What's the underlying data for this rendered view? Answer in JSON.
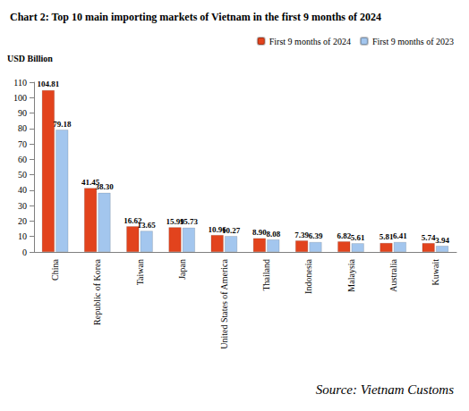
{
  "chart_data": {
    "type": "bar",
    "title": "Chart 2: Top 10 main importing markets of Vietnam in the first 9 months of 2024",
    "y_label": "USD Billion",
    "source": "Source: Vietnam Customs",
    "categories": [
      "China",
      "Republic of Korea",
      "Taiwan",
      "Japan",
      "United States of America",
      "Thailand",
      "Indonesia",
      "Malaysia",
      "Australia",
      "Kuwait"
    ],
    "series": [
      {
        "name": "First 9 months of 2024",
        "color": "#e2431d",
        "values": [
          104.81,
          41.45,
          16.62,
          15.99,
          10.96,
          8.9,
          7.39,
          6.82,
          5.81,
          5.74
        ],
        "value_labels": [
          "104.81",
          "41.45",
          "16.62",
          "15.99",
          "10.96",
          "8.90",
          "7.39",
          "6.82",
          "5.81",
          "5.74"
        ]
      },
      {
        "name": "First 9 months of 2023",
        "color": "#a3c6ee",
        "values": [
          79.18,
          38.3,
          13.65,
          15.73,
          10.27,
          8.08,
          6.39,
          5.61,
          6.41,
          3.94
        ],
        "value_labels": [
          "79.18",
          "38.30",
          "13.65",
          "15.73",
          "10.27",
          "8.08",
          "6.39",
          "5.61",
          "6.41",
          "3.94"
        ]
      }
    ],
    "ylim": [
      0,
      110
    ],
    "yticks": [
      0,
      10,
      20,
      30,
      40,
      50,
      60,
      70,
      80,
      90,
      100,
      110
    ],
    "grid": false,
    "legend": "top-right",
    "data_labels": true
  }
}
